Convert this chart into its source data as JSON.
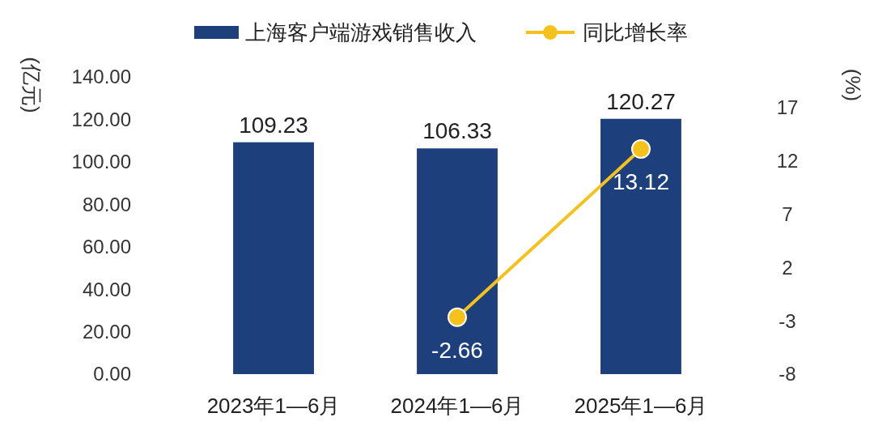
{
  "chart_data": {
    "type": "bar",
    "categories": [
      "2023年1—6月",
      "2024年1—6月",
      "2025年1—6月"
    ],
    "series": [
      {
        "name": "上海客户端游戏销售收入",
        "color": "#1d3f7c",
        "values": [
          109.23,
          106.33,
          120.27
        ]
      },
      {
        "name": "同比增长率",
        "type": "line",
        "axis": "y2",
        "color": "#f5c21b",
        "values": [
          null,
          -2.66,
          13.12
        ]
      }
    ],
    "ylabel": "(亿元)",
    "y2label": "(%)",
    "ylim": [
      0,
      140
    ],
    "yticks": [
      {
        "value": 0,
        "label": "0.00"
      },
      {
        "value": 20,
        "label": "20.00"
      },
      {
        "value": 40,
        "label": "40.00"
      },
      {
        "value": 60,
        "label": "60.00"
      },
      {
        "value": 80,
        "label": "80.00"
      },
      {
        "value": 100,
        "label": "100.00"
      },
      {
        "value": 120,
        "label": "120.00"
      },
      {
        "value": 140,
        "label": "140.00"
      }
    ],
    "y2lim": [
      -8,
      17
    ],
    "y2ticks": [
      -8,
      -3,
      2,
      7,
      12,
      17
    ],
    "data_labels": true,
    "marker": "circle",
    "legend": "top",
    "grid": false
  }
}
